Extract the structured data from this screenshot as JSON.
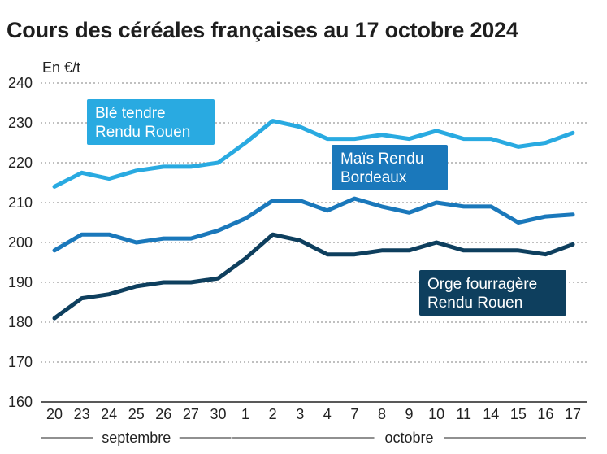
{
  "chart_data": {
    "type": "line",
    "title": "Cours des céréales françaises au 17 octobre 2024",
    "ylabel": "En €/t",
    "ylim": [
      160,
      240
    ],
    "yticks": [
      160,
      170,
      180,
      190,
      200,
      210,
      220,
      230,
      240
    ],
    "grid": true,
    "x": [
      "20",
      "23",
      "24",
      "25",
      "26",
      "27",
      "30",
      "1",
      "2",
      "3",
      "4",
      "7",
      "8",
      "9",
      "10",
      "11",
      "14",
      "15",
      "16",
      "17"
    ],
    "month_groups": [
      {
        "label": "septembre",
        "from": 0,
        "to": 6
      },
      {
        "label": "octobre",
        "from": 7,
        "to": 19
      }
    ],
    "series": [
      {
        "name": "Blé tendre Rendu Rouen",
        "label_lines": [
          "Blé tendre",
          "Rendu Rouen"
        ],
        "color": "#29aae1",
        "values": [
          214,
          217.5,
          216,
          218,
          219,
          219,
          220,
          225,
          230.5,
          229,
          226,
          226,
          227,
          226,
          228,
          226,
          226,
          224,
          225,
          227.5
        ]
      },
      {
        "name": "Maïs Rendu Bordeaux",
        "label_lines": [
          "Maïs Rendu",
          "Bordeaux"
        ],
        "color": "#1a78bb",
        "values": [
          198,
          202,
          202,
          200,
          201,
          201,
          203,
          206,
          210.5,
          210.5,
          208,
          211,
          209,
          207.5,
          210,
          209,
          209,
          205,
          206.5,
          207
        ]
      },
      {
        "name": "Orge fourragère Rendu Rouen",
        "label_lines": [
          "Orge fourragère",
          "Rendu Rouen"
        ],
        "color": "#0e3f5e",
        "values": [
          181,
          186,
          187,
          189,
          190,
          190,
          191,
          196,
          202,
          200.5,
          197,
          197,
          198,
          198,
          200,
          198,
          198,
          198,
          197,
          199.5
        ]
      }
    ]
  }
}
